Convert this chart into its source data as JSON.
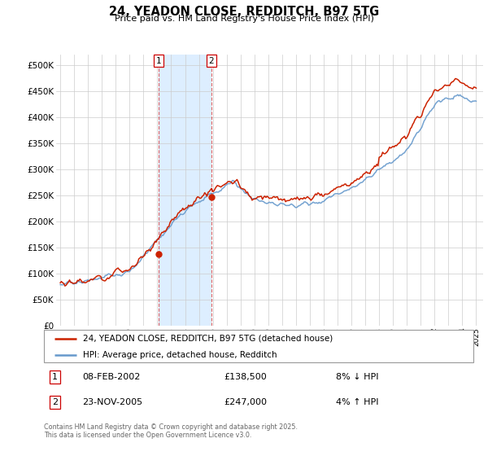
{
  "title": "24, YEADON CLOSE, REDDITCH, B97 5TG",
  "subtitle": "Price paid vs. HM Land Registry's House Price Index (HPI)",
  "legend_line1": "24, YEADON CLOSE, REDDITCH, B97 5TG (detached house)",
  "legend_line2": "HPI: Average price, detached house, Redditch",
  "annotation1": {
    "num": "1",
    "date": "08-FEB-2002",
    "price": "£138,500",
    "pct": "8% ↓ HPI"
  },
  "annotation2": {
    "num": "2",
    "date": "23-NOV-2005",
    "price": "£247,000",
    "pct": "4% ↑ HPI"
  },
  "footer": "Contains HM Land Registry data © Crown copyright and database right 2025.\nThis data is licensed under the Open Government Licence v3.0.",
  "red_color": "#cc2200",
  "blue_color": "#6699cc",
  "shaded_color": "#ddeeff",
  "ylim": [
    0,
    520000
  ],
  "yticks": [
    0,
    50000,
    100000,
    150000,
    200000,
    250000,
    300000,
    350000,
    400000,
    450000,
    500000
  ],
  "transaction1_x": 2002.1,
  "transaction1_y": 138500,
  "transaction2_x": 2005.9,
  "transaction2_y": 247000,
  "vline1_x": 2002.1,
  "vline2_x": 2005.9,
  "xlim_left": 1994.7,
  "xlim_right": 2025.5
}
